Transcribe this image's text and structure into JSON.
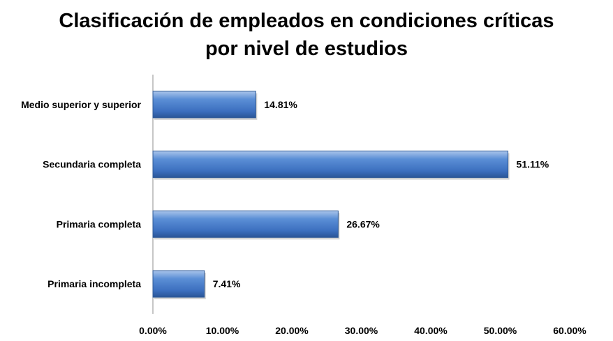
{
  "chart_data": {
    "type": "bar",
    "orientation": "horizontal",
    "title_lines": [
      "Clasificación de empleados en condiciones críticas",
      "por nivel de estudios"
    ],
    "categories": [
      "Medio superior y superior",
      "Secundaria completa",
      "Primaria completa",
      "Primaria incompleta"
    ],
    "values": [
      14.81,
      51.11,
      26.67,
      7.41
    ],
    "value_labels": [
      "14.81%",
      "51.11%",
      "26.67%",
      "7.41%"
    ],
    "xlim": [
      0,
      60
    ],
    "x_ticks": [
      0,
      10,
      20,
      30,
      40,
      50,
      60
    ],
    "x_tick_labels": [
      "0.00%",
      "10.00%",
      "20.00%",
      "30.00%",
      "40.00%",
      "50.00%",
      "60.00%"
    ],
    "grid": false,
    "legend": "none",
    "bar_color": "#4F81BD"
  }
}
